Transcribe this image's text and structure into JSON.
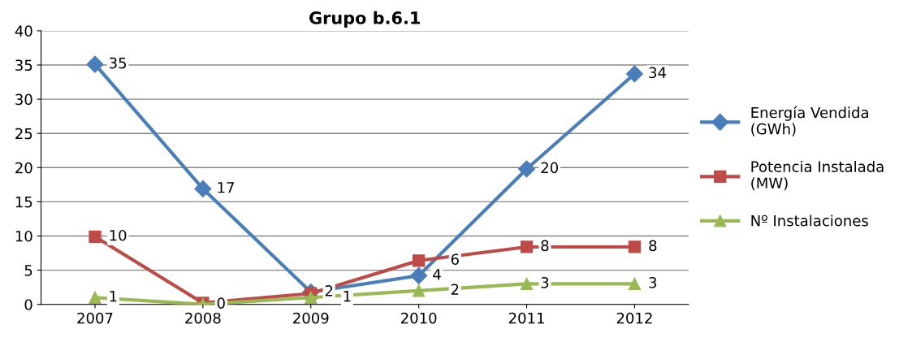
{
  "chart_data": {
    "type": "line",
    "title": "Grupo b.6.1",
    "categories": [
      "2007",
      "2008",
      "2009",
      "2010",
      "2011",
      "2012"
    ],
    "series": [
      {
        "name": "Energía Vendida (GWh)",
        "color": "#4a7ebb",
        "marker": "diamond",
        "values": [
          35.1,
          16.9,
          1.8,
          4.2,
          19.8,
          33.7
        ],
        "value_labels": [
          "35",
          "17",
          "2",
          "4",
          "20",
          "34"
        ]
      },
      {
        "name": "Potencia Instalada (MW)",
        "color": "#be4b48",
        "marker": "square",
        "values": [
          9.9,
          0.2,
          1.6,
          6.4,
          8.4,
          8.4
        ],
        "value_labels": [
          "10",
          null,
          null,
          "6",
          "8",
          "8"
        ]
      },
      {
        "name": "Nº Instalaciones",
        "color": "#98b954",
        "marker": "triangle",
        "values": [
          1,
          0,
          1,
          2,
          3,
          3
        ],
        "value_labels": [
          "1",
          "0",
          "1",
          "2",
          "3",
          "3"
        ]
      }
    ],
    "ylim": [
      0,
      40
    ],
    "yticks": [
      0,
      5,
      10,
      15,
      20,
      25,
      30,
      35,
      40
    ],
    "grid": "y",
    "legend": "right"
  }
}
